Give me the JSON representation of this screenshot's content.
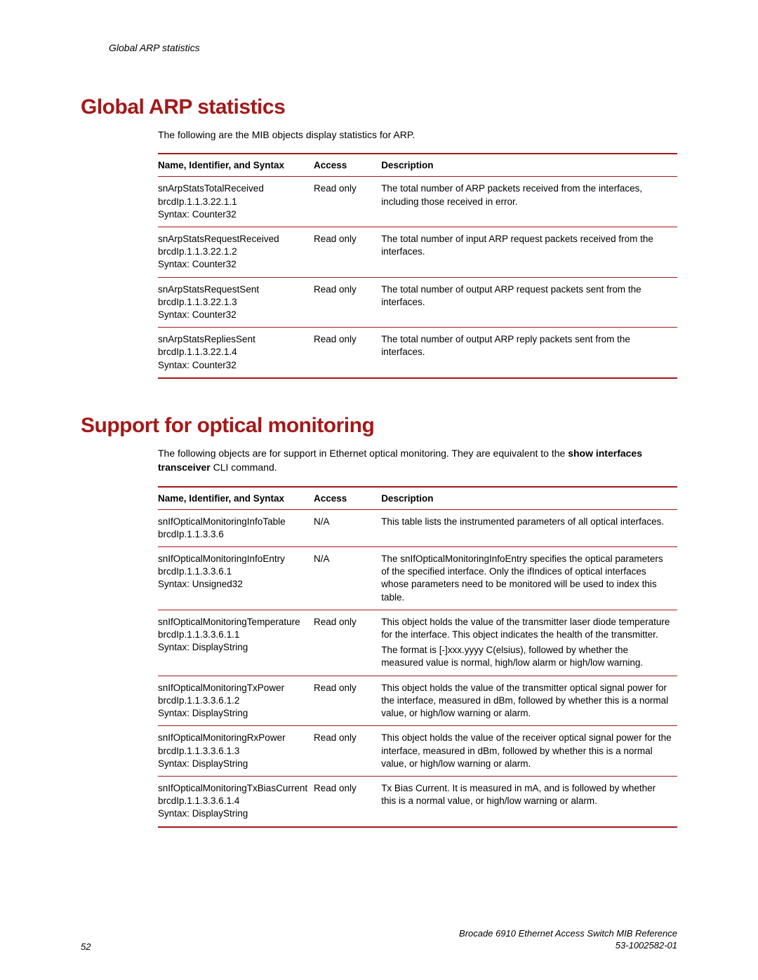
{
  "running_header": "Global ARP statistics",
  "section1": {
    "heading": "Global ARP statistics",
    "intro": "The following are the MIB objects display statistics for ARP.",
    "table": {
      "headers": {
        "name": "Name, Identifier, and Syntax",
        "access": "Access",
        "desc": "Description"
      },
      "rows": [
        {
          "name": [
            "snArpStatsTotalReceived",
            "brcdIp.1.1.3.22.1.1",
            "Syntax: Counter32"
          ],
          "access": "Read only",
          "desc": [
            "The total number of ARP packets received from the interfaces, including those received in error."
          ]
        },
        {
          "name": [
            "snArpStatsRequestReceived",
            "brcdIp.1.1.3.22.1.2",
            "Syntax: Counter32"
          ],
          "access": "Read only",
          "desc": [
            "The total number of input ARP request packets received from the interfaces."
          ]
        },
        {
          "name": [
            "snArpStatsRequestSent",
            "brcdIp.1.1.3.22.1.3",
            "Syntax: Counter32"
          ],
          "access": "Read only",
          "desc": [
            "The total number of output ARP request packets sent from the interfaces."
          ]
        },
        {
          "name": [
            "snArpStatsRepliesSent",
            "brcdIp.1.1.3.22.1.4",
            "Syntax: Counter32"
          ],
          "access": "Read only",
          "desc": [
            "The total number of output ARP reply packets sent from the interfaces."
          ]
        }
      ]
    }
  },
  "section2": {
    "heading": "Support for optical monitoring",
    "intro_a": "The following objects are for support in Ethernet optical monitoring. They are equivalent to the ",
    "intro_b_bold": "show interfaces transceiver",
    "intro_c": " CLI command.",
    "table": {
      "headers": {
        "name": "Name, Identifier, and Syntax",
        "access": "Access",
        "desc": "Description"
      },
      "rows": [
        {
          "name": [
            "snIfOpticalMonitoringInfoTable",
            "brcdIp.1.1.3.3.6"
          ],
          "access": "N/A",
          "desc": [
            "This table lists the instrumented parameters of all optical interfaces."
          ]
        },
        {
          "name": [
            "snIfOpticalMonitoringInfoEntry",
            "brcdIp.1.1.3.3.6.1",
            "Syntax: Unsigned32"
          ],
          "access": "N/A",
          "desc": [
            "The snIfOpticalMonitoringInfoEntry specifies the optical parameters of the specified interface. Only the ifIndices of optical interfaces whose parameters need to be monitored will be used to index this table."
          ]
        },
        {
          "name": [
            "snIfOpticalMonitoringTemperature",
            "brcdIp.1.1.3.3.6.1.1",
            "Syntax: DisplayString"
          ],
          "access": "Read only",
          "desc": [
            "This object holds the value of the transmitter laser diode temperature for the interface. This object indicates the health of the transmitter.",
            "The format is [-]xxx.yyyy C(elsius), followed by whether the measured value is normal, high/low alarm or high/low warning."
          ]
        },
        {
          "name": [
            "snIfOpticalMonitoringTxPower",
            "brcdIp.1.1.3.3.6.1.2",
            "Syntax: DisplayString"
          ],
          "access": "Read only",
          "desc": [
            "This object holds the value of the transmitter optical signal power for the interface, measured in dBm, followed by whether this is a normal value, or high/low warning or alarm."
          ]
        },
        {
          "name": [
            "snIfOpticalMonitoringRxPower",
            "brcdIp.1.1.3.3.6.1.3",
            "Syntax: DisplayString"
          ],
          "access": "Read only",
          "desc": [
            "This object holds the value of the receiver optical signal power for the interface, measured in dBm, followed by whether this is a normal value, or high/low warning or alarm."
          ]
        },
        {
          "name": [
            "snIfOpticalMonitoringTxBiasCurrent",
            "brcdIp.1.1.3.3.6.1.4",
            "Syntax: DisplayString"
          ],
          "access": "Read only",
          "desc": [
            "Tx Bias Current. It is measured in mA, and is followed by whether this is a normal value, or high/low warning or alarm."
          ]
        }
      ]
    }
  },
  "footer": {
    "page": "52",
    "doc_title": "Brocade 6910 Ethernet Access Switch MIB Reference",
    "doc_id": "53-1002582-01"
  },
  "colors": {
    "accent": "#a31919",
    "text": "#000000",
    "background": "#ffffff"
  }
}
